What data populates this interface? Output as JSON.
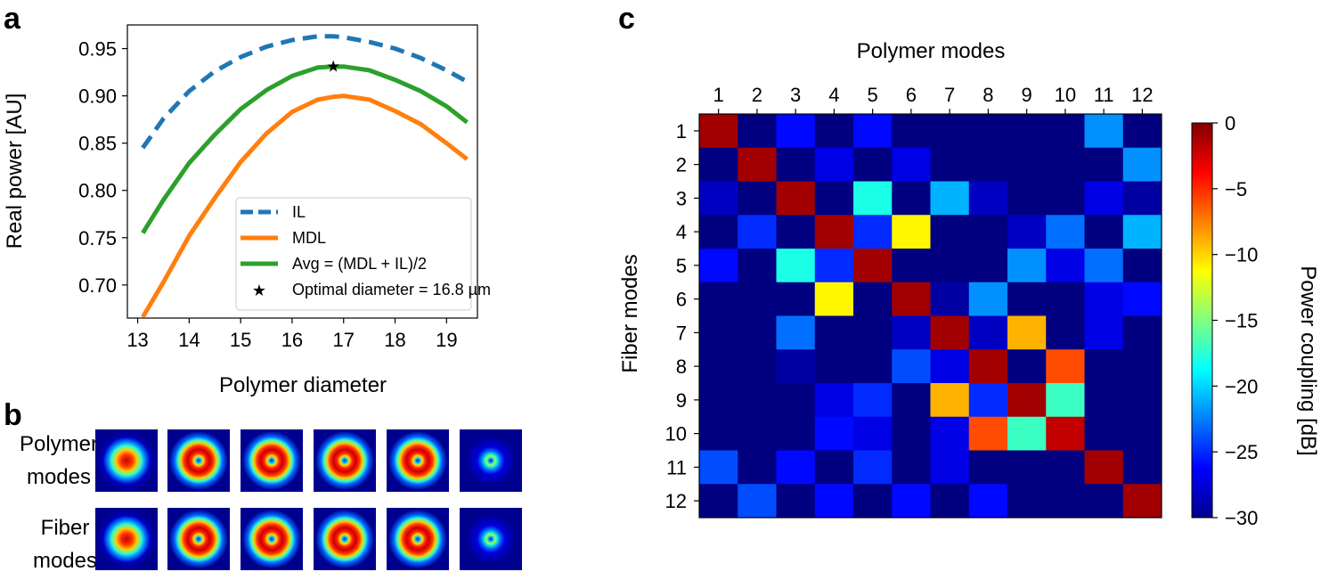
{
  "chart_data": [
    {
      "panel": "a",
      "type": "line",
      "xlabel": "Polymer diameter",
      "ylabel": "Real power [AU]",
      "xlim": [
        12.8,
        19.6
      ],
      "ylim": [
        0.665,
        0.975
      ],
      "xticks": [
        "13",
        "14",
        "15",
        "16",
        "17",
        "18",
        "19"
      ],
      "yticks": [
        "0.70",
        "0.75",
        "0.80",
        "0.85",
        "0.90",
        "0.95"
      ],
      "x": [
        13.1,
        13.5,
        14.0,
        14.5,
        15.0,
        15.5,
        16.0,
        16.5,
        16.8,
        17.0,
        17.5,
        18.0,
        18.5,
        19.0,
        19.4
      ],
      "series": [
        {
          "name": "IL",
          "color": "#1f77b4",
          "style": "dashed",
          "values": [
            0.845,
            0.876,
            0.905,
            0.926,
            0.941,
            0.952,
            0.959,
            0.963,
            0.963,
            0.962,
            0.957,
            0.95,
            0.94,
            0.927,
            0.915
          ]
        },
        {
          "name": "MDL",
          "color": "#ff7f0e",
          "style": "solid",
          "values": [
            0.666,
            0.703,
            0.752,
            0.792,
            0.83,
            0.86,
            0.883,
            0.896,
            0.899,
            0.9,
            0.896,
            0.884,
            0.87,
            0.85,
            0.833
          ]
        },
        {
          "name": "Avg = (MDL + IL)/2",
          "color": "#2ca02c",
          "style": "solid",
          "values": [
            0.755,
            0.79,
            0.829,
            0.859,
            0.886,
            0.906,
            0.921,
            0.93,
            0.931,
            0.931,
            0.927,
            0.917,
            0.905,
            0.889,
            0.872
          ]
        }
      ],
      "marker": {
        "label": "Optimal diameter = 16.8 µm",
        "x": 16.8,
        "y": 0.931,
        "color": "#0000ff",
        "symbol": "★"
      }
    },
    {
      "panel": "c",
      "type": "heatmap",
      "xlabel": "Polymer modes",
      "ylabel": "Fiber modes",
      "colorbar_label": "Power coupling [dB]",
      "colorbar_ticks": [
        "0",
        "−5",
        "−10",
        "−15",
        "−20",
        "−25",
        "−30"
      ],
      "vmin": -30,
      "vmax": 0,
      "col_labels": [
        "1",
        "2",
        "3",
        "4",
        "5",
        "6",
        "7",
        "8",
        "9",
        "10",
        "11",
        "12"
      ],
      "row_labels": [
        "1",
        "2",
        "3",
        "4",
        "5",
        "6",
        "7",
        "8",
        "9",
        "10",
        "11",
        "12"
      ],
      "matrix": [
        [
          -1,
          -30,
          -26,
          -30,
          -26,
          -30,
          -30,
          -30,
          -30,
          -30,
          -22,
          -30
        ],
        [
          -30,
          -1,
          -30,
          -27,
          -30,
          -27,
          -30,
          -30,
          -30,
          -30,
          -30,
          -22
        ],
        [
          -28,
          -30,
          -1,
          -30,
          -18,
          -30,
          -21,
          -28,
          -30,
          -30,
          -27,
          -29
        ],
        [
          -30,
          -25,
          -30,
          -1,
          -25,
          -11,
          -30,
          -30,
          -28,
          -23,
          -30,
          -21
        ],
        [
          -26,
          -30,
          -18,
          -25,
          -1,
          -30,
          -30,
          -30,
          -22,
          -27,
          -23,
          -30
        ],
        [
          -30,
          -30,
          -30,
          -11,
          -30,
          -1,
          -29,
          -22,
          -30,
          -30,
          -27,
          -26
        ],
        [
          -30,
          -30,
          -23,
          -30,
          -30,
          -28,
          -1,
          -28,
          -9,
          -30,
          -27,
          -30
        ],
        [
          -30,
          -30,
          -29,
          -30,
          -30,
          -24,
          -27,
          -1,
          -30,
          -6,
          -30,
          -30
        ],
        [
          -30,
          -30,
          -30,
          -27,
          -25,
          -30,
          -9,
          -25,
          -1,
          -17,
          -30,
          -30
        ],
        [
          -30,
          -30,
          -30,
          -26,
          -27,
          -30,
          -27,
          -6,
          -17,
          -2,
          -30,
          -30
        ],
        [
          -24,
          -30,
          -26,
          -30,
          -25,
          -30,
          -27,
          -30,
          -30,
          -30,
          -1,
          -30
        ],
        [
          -30,
          -24,
          -30,
          -26,
          -30,
          -26,
          -30,
          -26,
          -30,
          -30,
          -30,
          -1
        ]
      ]
    }
  ],
  "panels": {
    "a": "a",
    "b": "b",
    "c": "c"
  },
  "panel_b": {
    "row_labels": [
      {
        "line1": "Polymer",
        "line2": "modes"
      },
      {
        "line1": "Fiber",
        "line2": "modes"
      }
    ],
    "polymer_modes": [
      {
        "type": "spot"
      },
      {
        "type": "ring"
      },
      {
        "type": "ring"
      },
      {
        "type": "ring"
      },
      {
        "type": "ring"
      },
      {
        "type": "ring-small"
      }
    ],
    "fiber_modes": [
      {
        "type": "spot"
      },
      {
        "type": "ring"
      },
      {
        "type": "ring"
      },
      {
        "type": "ring"
      },
      {
        "type": "ring"
      },
      {
        "type": "ring-small"
      }
    ]
  }
}
